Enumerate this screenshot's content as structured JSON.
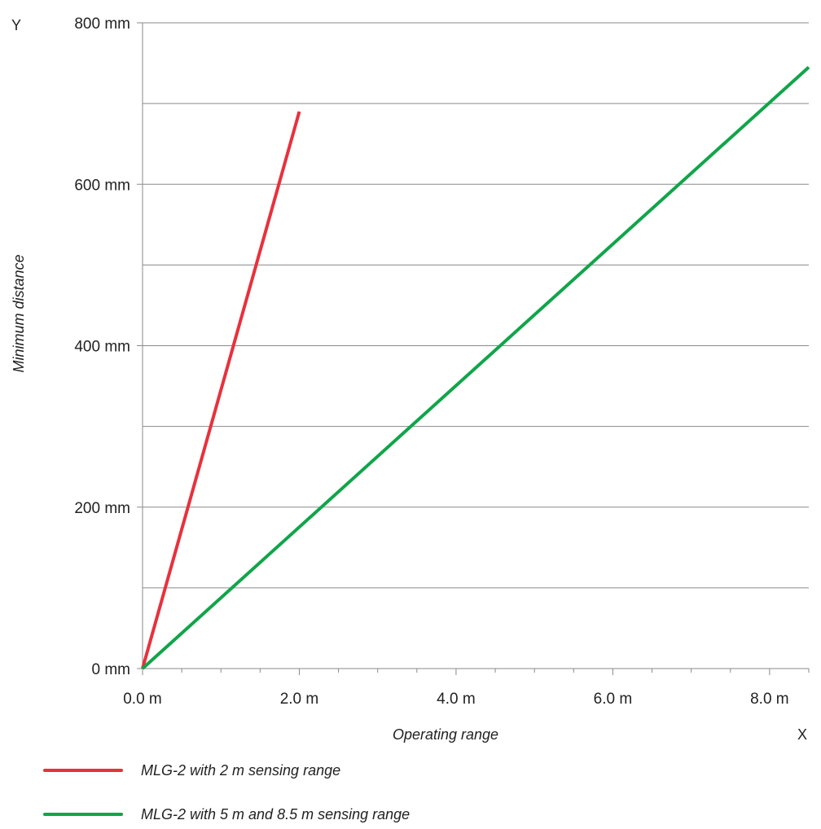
{
  "chart_data": {
    "type": "line",
    "xlabel": "Operating range",
    "ylabel": "Minimum distance",
    "x_axis_letter": "X",
    "y_axis_letter": "Y",
    "xlim": [
      0,
      8.5
    ],
    "ylim": [
      0,
      800
    ],
    "x_ticks": [
      {
        "value": 0,
        "label": "0.0 m"
      },
      {
        "value": 2,
        "label": "2.0 m"
      },
      {
        "value": 4,
        "label": "4.0 m"
      },
      {
        "value": 6,
        "label": "6.0 m"
      },
      {
        "value": 8,
        "label": "8.0 m"
      }
    ],
    "x_minor_ticks": [
      0.5,
      1,
      1.5,
      2.5,
      3,
      3.5,
      4.5,
      5,
      5.5,
      6.5,
      7,
      7.5,
      8.5
    ],
    "y_ticks": [
      {
        "value": 0,
        "label": "0 mm"
      },
      {
        "value": 200,
        "label": "200 mm"
      },
      {
        "value": 400,
        "label": "400 mm"
      },
      {
        "value": 600,
        "label": "600 mm"
      },
      {
        "value": 800,
        "label": "800 mm"
      }
    ],
    "y_gridlines": [
      100,
      200,
      300,
      400,
      500,
      600,
      700,
      800
    ],
    "grid": "horizontal",
    "legend_position": "bottom",
    "series": [
      {
        "name": "MLG-2 with 2 m sensing range",
        "color": "#e8313d",
        "points": [
          [
            0,
            0
          ],
          [
            2,
            690
          ]
        ]
      },
      {
        "name": "MLG-2 with 5 m and 8.5 m sensing range",
        "color": "#10a54a",
        "points": [
          [
            0,
            0
          ],
          [
            8.5,
            745
          ]
        ]
      }
    ]
  }
}
